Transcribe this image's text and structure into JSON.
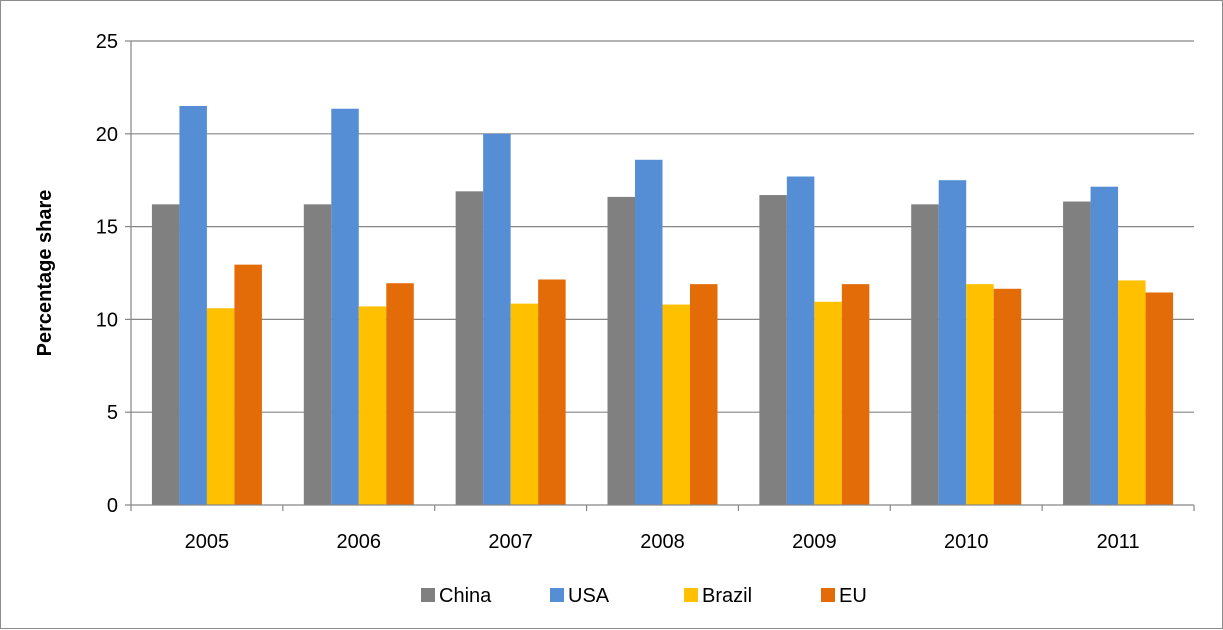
{
  "chart_data": {
    "type": "bar",
    "categories": [
      "2005",
      "2006",
      "2007",
      "2008",
      "2009",
      "2010",
      "2011"
    ],
    "series": [
      {
        "name": "China",
        "color": "#808080",
        "values": [
          16.2,
          16.2,
          16.9,
          16.6,
          16.7,
          16.2,
          16.35
        ]
      },
      {
        "name": "USA",
        "color": "#558ED5",
        "values": [
          21.5,
          21.35,
          20.0,
          18.6,
          17.7,
          17.5,
          17.15
        ]
      },
      {
        "name": "Brazil",
        "color": "#FFC000",
        "values": [
          10.6,
          10.7,
          10.85,
          10.8,
          10.95,
          11.9,
          12.1
        ]
      },
      {
        "name": "EU",
        "color": "#E36C09",
        "values": [
          12.95,
          11.95,
          12.15,
          11.9,
          11.9,
          11.65,
          11.45
        ]
      }
    ],
    "ylabel": "Percentage share",
    "xlabel": "",
    "title": "",
    "ylim": [
      0,
      25
    ],
    "yticks": [
      "0",
      "5",
      "10",
      "15",
      "20",
      "25"
    ],
    "grid": true,
    "legend_position": "bottom"
  }
}
